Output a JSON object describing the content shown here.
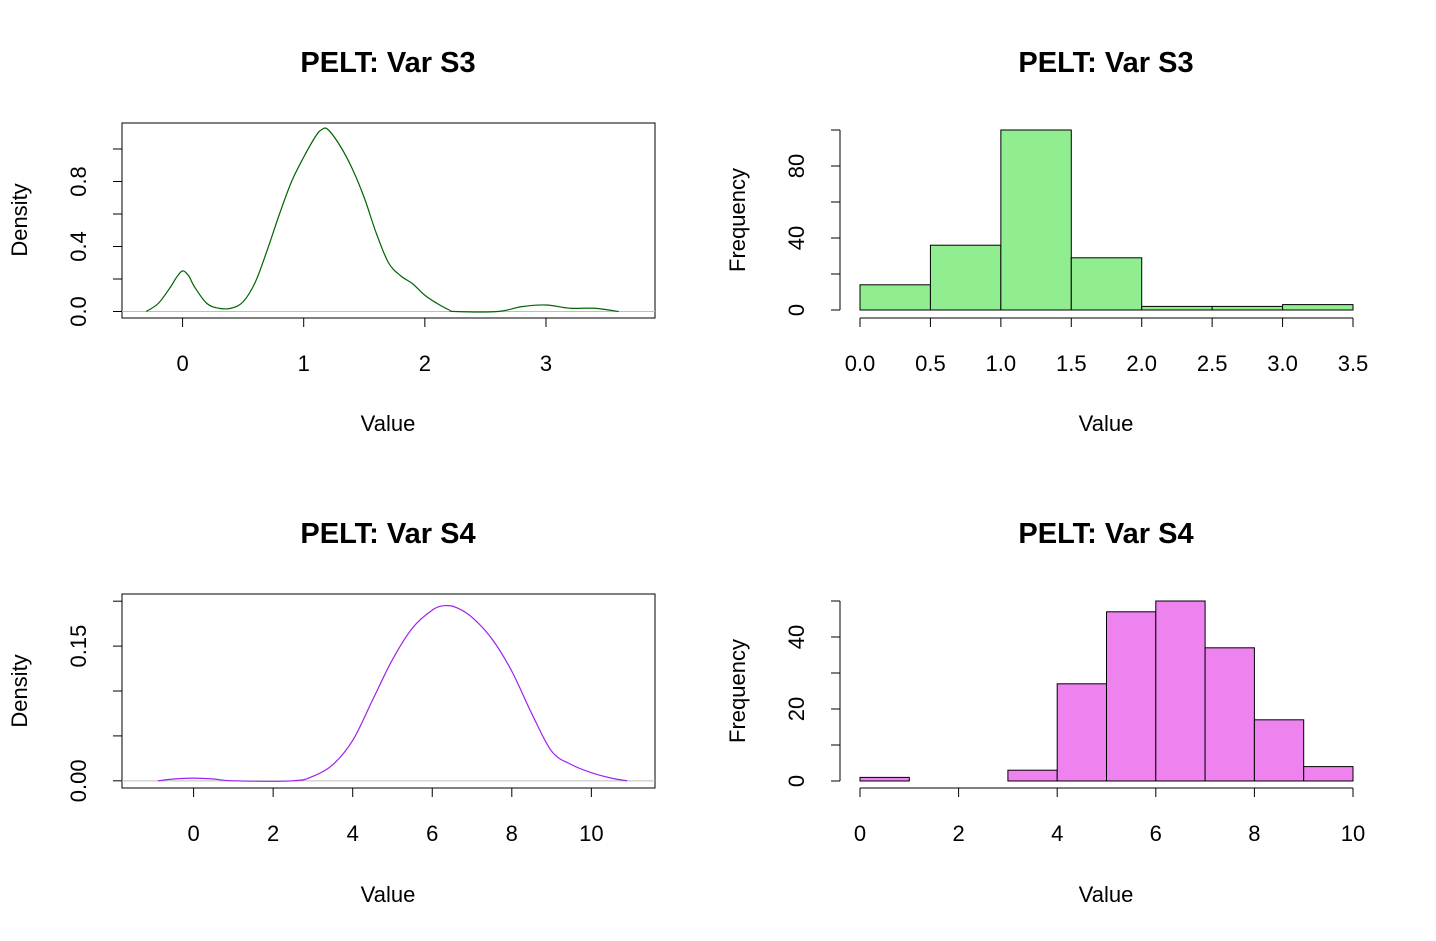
{
  "chart_data": [
    {
      "type": "line",
      "title": "PELT: Var S3",
      "xlabel": "Value",
      "ylabel": "Density",
      "line_color": "#006400",
      "xlim": [
        -0.5,
        3.9
      ],
      "ylim": [
        -0.04,
        1.16
      ],
      "x_ticks": [
        0,
        1,
        2,
        3
      ],
      "y_ticks": [
        0.0,
        0.2,
        0.4,
        0.6,
        0.8,
        1.0
      ],
      "y_tick_labels": [
        "0.0",
        "",
        "0.4",
        "",
        "0.8",
        ""
      ],
      "x": [
        -0.3,
        -0.2,
        -0.1,
        -0.05,
        0.0,
        0.05,
        0.1,
        0.2,
        0.3,
        0.4,
        0.5,
        0.6,
        0.7,
        0.8,
        0.9,
        1.0,
        1.1,
        1.15,
        1.2,
        1.3,
        1.4,
        1.5,
        1.6,
        1.7,
        1.8,
        1.9,
        2.0,
        2.1,
        2.2,
        2.25,
        2.6,
        2.8,
        3.0,
        3.2,
        3.4,
        3.6
      ],
      "y": [
        0.0,
        0.05,
        0.15,
        0.21,
        0.25,
        0.22,
        0.15,
        0.05,
        0.02,
        0.02,
        0.06,
        0.18,
        0.38,
        0.6,
        0.8,
        0.95,
        1.08,
        1.12,
        1.12,
        1.02,
        0.88,
        0.7,
        0.48,
        0.3,
        0.22,
        0.17,
        0.1,
        0.05,
        0.01,
        0.0,
        0.0,
        0.03,
        0.04,
        0.02,
        0.02,
        0.0
      ]
    },
    {
      "type": "bar",
      "title": "PELT: Var S3",
      "xlabel": "Value",
      "ylabel": "Frequency",
      "bar_color": "#90EE90",
      "bins": [
        [
          0.0,
          0.5
        ],
        [
          0.5,
          1.0
        ],
        [
          1.0,
          1.5
        ],
        [
          1.5,
          2.0
        ],
        [
          2.0,
          2.5
        ],
        [
          2.5,
          3.0
        ],
        [
          3.0,
          3.5
        ]
      ],
      "values": [
        14,
        36,
        100,
        29,
        2,
        2,
        3
      ],
      "xlim": [
        0.0,
        3.5
      ],
      "ylim": [
        0,
        100
      ],
      "x_ticks": [
        0.0,
        0.5,
        1.0,
        1.5,
        2.0,
        2.5,
        3.0,
        3.5
      ],
      "x_tick_labels": [
        "0.0",
        "0.5",
        "1.0",
        "1.5",
        "2.0",
        "2.5",
        "3.0",
        "3.5"
      ],
      "y_ticks": [
        0,
        20,
        40,
        60,
        80,
        100
      ],
      "y_tick_labels": [
        "0",
        "",
        "40",
        "",
        "80",
        ""
      ]
    },
    {
      "type": "line",
      "title": "PELT: Var S4",
      "xlabel": "Value",
      "ylabel": "Density",
      "line_color": "#A020F0",
      "xlim": [
        -1.8,
        11.6
      ],
      "ylim": [
        -0.008,
        0.208
      ],
      "x_ticks": [
        0,
        2,
        4,
        6,
        8,
        10
      ],
      "y_ticks": [
        0.0,
        0.05,
        0.1,
        0.15,
        0.2
      ],
      "y_tick_labels": [
        "0.00",
        "",
        "",
        "0.15",
        ""
      ],
      "x": [
        -0.9,
        -0.5,
        0.0,
        0.5,
        1.0,
        2.5,
        3.0,
        3.5,
        4.0,
        4.5,
        5.0,
        5.5,
        6.0,
        6.3,
        6.6,
        7.0,
        7.5,
        8.0,
        8.5,
        9.0,
        9.5,
        10.0,
        10.5,
        10.9
      ],
      "y": [
        0.0,
        0.002,
        0.003,
        0.002,
        0.0,
        0.0,
        0.005,
        0.018,
        0.045,
        0.09,
        0.135,
        0.17,
        0.19,
        0.195,
        0.193,
        0.182,
        0.158,
        0.122,
        0.075,
        0.033,
        0.018,
        0.009,
        0.003,
        0.0
      ]
    },
    {
      "type": "bar",
      "title": "PELT: Var S4",
      "xlabel": "Value",
      "ylabel": "Frequency",
      "bar_color": "#EE82EE",
      "bins": [
        [
          0,
          1
        ],
        [
          1,
          2
        ],
        [
          2,
          3
        ],
        [
          3,
          4
        ],
        [
          4,
          5
        ],
        [
          5,
          6
        ],
        [
          6,
          7
        ],
        [
          7,
          8
        ],
        [
          8,
          9
        ],
        [
          9,
          10
        ]
      ],
      "values": [
        1,
        0,
        0,
        3,
        27,
        47,
        50,
        37,
        17,
        4
      ],
      "xlim": [
        0,
        10
      ],
      "ylim": [
        0,
        50
      ],
      "x_ticks": [
        0,
        2,
        4,
        6,
        8,
        10
      ],
      "x_tick_labels": [
        "0",
        "2",
        "4",
        "6",
        "8",
        "10"
      ],
      "y_ticks": [
        0,
        10,
        20,
        30,
        40,
        50
      ],
      "y_tick_labels": [
        "0",
        "",
        "20",
        "",
        "40",
        ""
      ]
    }
  ]
}
